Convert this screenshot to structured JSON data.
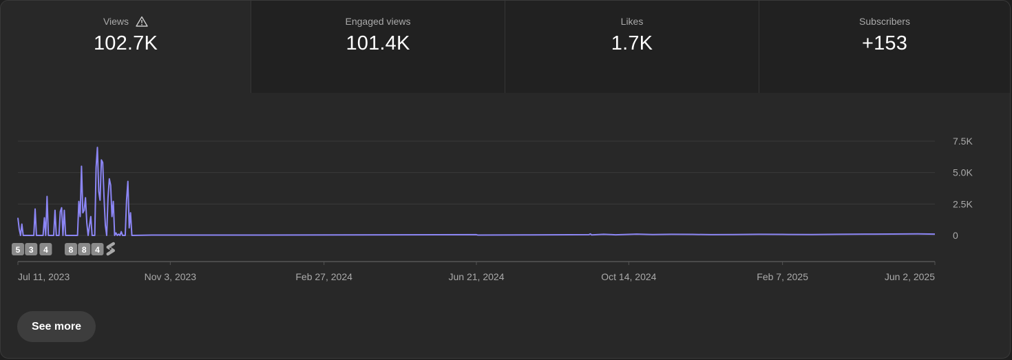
{
  "metrics": [
    {
      "label": "Views",
      "value": "102.7K",
      "warning_icon": "warning-icon",
      "active": true
    },
    {
      "label": "Engaged views",
      "value": "101.4K",
      "active": false
    },
    {
      "label": "Likes",
      "value": "1.7K",
      "active": false
    },
    {
      "label": "Subscribers",
      "value": "+153",
      "active": false
    }
  ],
  "see_more_label": "See more",
  "colors": {
    "line": "#8c86f5",
    "grid": "#3a3a3a",
    "tick_text": "#aaaaaa",
    "marker_bg": "#8a8a8a"
  },
  "chart_data": {
    "type": "line",
    "x_start": "2023-07-11",
    "x_end": "2025-06-02",
    "x_ticks": [
      {
        "date": "2023-07-11",
        "label": "Jul 11, 2023"
      },
      {
        "date": "2023-11-03",
        "label": "Nov 3, 2023"
      },
      {
        "date": "2024-02-27",
        "label": "Feb 27, 2024"
      },
      {
        "date": "2024-06-21",
        "label": "Jun 21, 2024"
      },
      {
        "date": "2024-10-14",
        "label": "Oct 14, 2024"
      },
      {
        "date": "2025-02-07",
        "label": "Feb 7, 2025"
      },
      {
        "date": "2025-06-02",
        "label": "Jun 2, 2025"
      }
    ],
    "y_ticks": [
      {
        "value": 0,
        "label": "0"
      },
      {
        "value": 2500,
        "label": "2.5K"
      },
      {
        "value": 5000,
        "label": "5.0K"
      },
      {
        "value": 7500,
        "label": "7.5K"
      }
    ],
    "ylim": [
      0,
      7500
    ],
    "grid": true,
    "series": [
      {
        "points": [
          [
            "2023-07-11",
            1400
          ],
          [
            "2023-07-12",
            500
          ],
          [
            "2023-07-13",
            0
          ],
          [
            "2023-07-14",
            900
          ],
          [
            "2023-07-15",
            0
          ],
          [
            "2023-07-23",
            0
          ],
          [
            "2023-07-24",
            2100
          ],
          [
            "2023-07-25",
            0
          ],
          [
            "2023-07-30",
            0
          ],
          [
            "2023-07-31",
            1400
          ],
          [
            "2023-08-01",
            0
          ],
          [
            "2023-08-02",
            3100
          ],
          [
            "2023-08-03",
            0
          ],
          [
            "2023-08-07",
            0
          ],
          [
            "2023-08-08",
            2000
          ],
          [
            "2023-08-09",
            0
          ],
          [
            "2023-08-11",
            0
          ],
          [
            "2023-08-12",
            1900
          ],
          [
            "2023-08-13",
            2200
          ],
          [
            "2023-08-14",
            0
          ],
          [
            "2023-08-15",
            2000
          ],
          [
            "2023-08-16",
            0
          ],
          [
            "2023-08-25",
            0
          ],
          [
            "2023-08-26",
            2700
          ],
          [
            "2023-08-27",
            1500
          ],
          [
            "2023-08-28",
            5500
          ],
          [
            "2023-08-29",
            1800
          ],
          [
            "2023-08-30",
            2000
          ],
          [
            "2023-08-31",
            3000
          ],
          [
            "2023-09-01",
            1000
          ],
          [
            "2023-09-02",
            0
          ],
          [
            "2023-09-04",
            1500
          ],
          [
            "2023-09-05",
            0
          ],
          [
            "2023-09-07",
            0
          ],
          [
            "2023-09-08",
            5400
          ],
          [
            "2023-09-09",
            7000
          ],
          [
            "2023-09-10",
            3500
          ],
          [
            "2023-09-11",
            2800
          ],
          [
            "2023-09-12",
            6000
          ],
          [
            "2023-09-13",
            5800
          ],
          [
            "2023-09-14",
            3000
          ],
          [
            "2023-09-15",
            800
          ],
          [
            "2023-09-16",
            0
          ],
          [
            "2023-09-17",
            3000
          ],
          [
            "2023-09-18",
            4500
          ],
          [
            "2023-09-19",
            4000
          ],
          [
            "2023-09-20",
            1500
          ],
          [
            "2023-09-21",
            2700
          ],
          [
            "2023-09-22",
            0
          ],
          [
            "2023-09-23",
            200
          ],
          [
            "2023-09-24",
            0
          ],
          [
            "2023-09-25",
            100
          ],
          [
            "2023-09-26",
            0
          ],
          [
            "2023-09-27",
            300
          ],
          [
            "2023-09-28",
            0
          ],
          [
            "2023-09-30",
            0
          ],
          [
            "2023-10-01",
            2800
          ],
          [
            "2023-10-02",
            4300
          ],
          [
            "2023-10-03",
            600
          ],
          [
            "2023-10-04",
            1800
          ],
          [
            "2023-10-05",
            0
          ],
          [
            "2023-10-20",
            30
          ],
          [
            "2023-11-15",
            30
          ],
          [
            "2024-01-10",
            30
          ],
          [
            "2024-03-20",
            40
          ],
          [
            "2024-06-21",
            60
          ],
          [
            "2024-06-22",
            30
          ],
          [
            "2024-08-01",
            40
          ],
          [
            "2024-09-14",
            60
          ],
          [
            "2024-09-15",
            120
          ],
          [
            "2024-09-16",
            40
          ],
          [
            "2024-09-25",
            90
          ],
          [
            "2024-10-04",
            50
          ],
          [
            "2024-10-14",
            80
          ],
          [
            "2024-10-20",
            100
          ],
          [
            "2024-11-01",
            70
          ],
          [
            "2024-11-15",
            90
          ],
          [
            "2024-12-01",
            80
          ],
          [
            "2024-12-15",
            60
          ],
          [
            "2025-01-01",
            70
          ],
          [
            "2025-01-20",
            90
          ],
          [
            "2025-02-07",
            80
          ],
          [
            "2025-03-01",
            70
          ],
          [
            "2025-03-20",
            90
          ],
          [
            "2025-04-10",
            100
          ],
          [
            "2025-05-01",
            110
          ],
          [
            "2025-05-20",
            120
          ],
          [
            "2025-06-02",
            100
          ]
        ]
      }
    ],
    "annotations": [
      {
        "date": "2023-07-11",
        "label": "5"
      },
      {
        "date": "2023-07-21",
        "label": "3"
      },
      {
        "date": "2023-08-01",
        "label": "4"
      },
      {
        "date": "2023-08-20",
        "label": "8"
      },
      {
        "date": "2023-08-30",
        "label": "8"
      },
      {
        "date": "2023-09-09",
        "label": "4"
      },
      {
        "date": "2023-09-19",
        "label": "",
        "icon": "shorts-icon"
      }
    ]
  }
}
